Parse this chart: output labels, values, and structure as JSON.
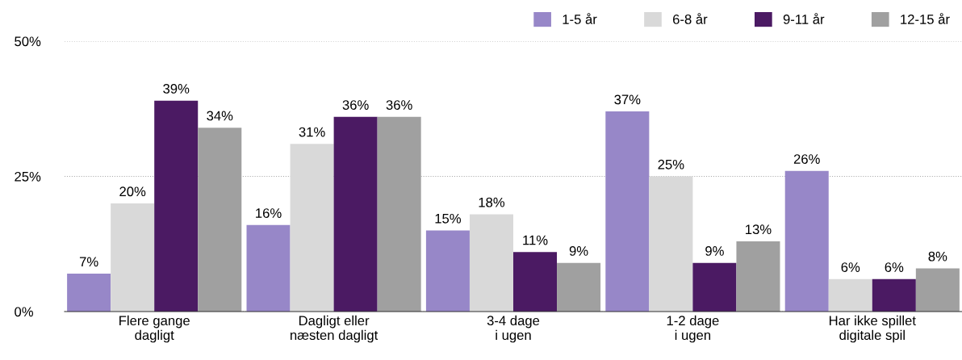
{
  "chart_data": {
    "type": "bar",
    "categories": [
      "Flere gange\ndagligt",
      "Dagligt eller\nnæsten dagligt",
      "3-4 dage\ni ugen",
      "1-2 dage\ni ugen",
      "Har ikke spillet\ndigitale spil"
    ],
    "series": [
      {
        "name": "1-5 år",
        "color": "#9787c8",
        "values": [
          7,
          16,
          15,
          37,
          26
        ],
        "value_labels": [
          "7%",
          "16%",
          "15%",
          "37%",
          "26%"
        ]
      },
      {
        "name": "6-8 år",
        "color": "#d9d9d9",
        "values": [
          20,
          31,
          18,
          25,
          6
        ],
        "value_labels": [
          "20%",
          "31%",
          "18%",
          "25%",
          "6%"
        ]
      },
      {
        "name": "9-11 år",
        "color": "#4b1a63",
        "values": [
          39,
          36,
          11,
          9,
          6
        ],
        "value_labels": [
          "39%",
          "36%",
          "11%",
          "9%",
          "6%"
        ]
      },
      {
        "name": "12-15 år",
        "color": "#a0a0a0",
        "values": [
          34,
          36,
          9,
          13,
          8
        ],
        "value_labels": [
          "34%",
          "36%",
          "9%",
          "13%",
          "8%"
        ]
      }
    ],
    "ylim": [
      0,
      50
    ],
    "yticks": [
      {
        "value": 0,
        "label": "0%"
      },
      {
        "value": 25,
        "label": "25%"
      },
      {
        "value": 50,
        "label": "50%"
      }
    ],
    "grid": "y",
    "legend": "top right"
  }
}
